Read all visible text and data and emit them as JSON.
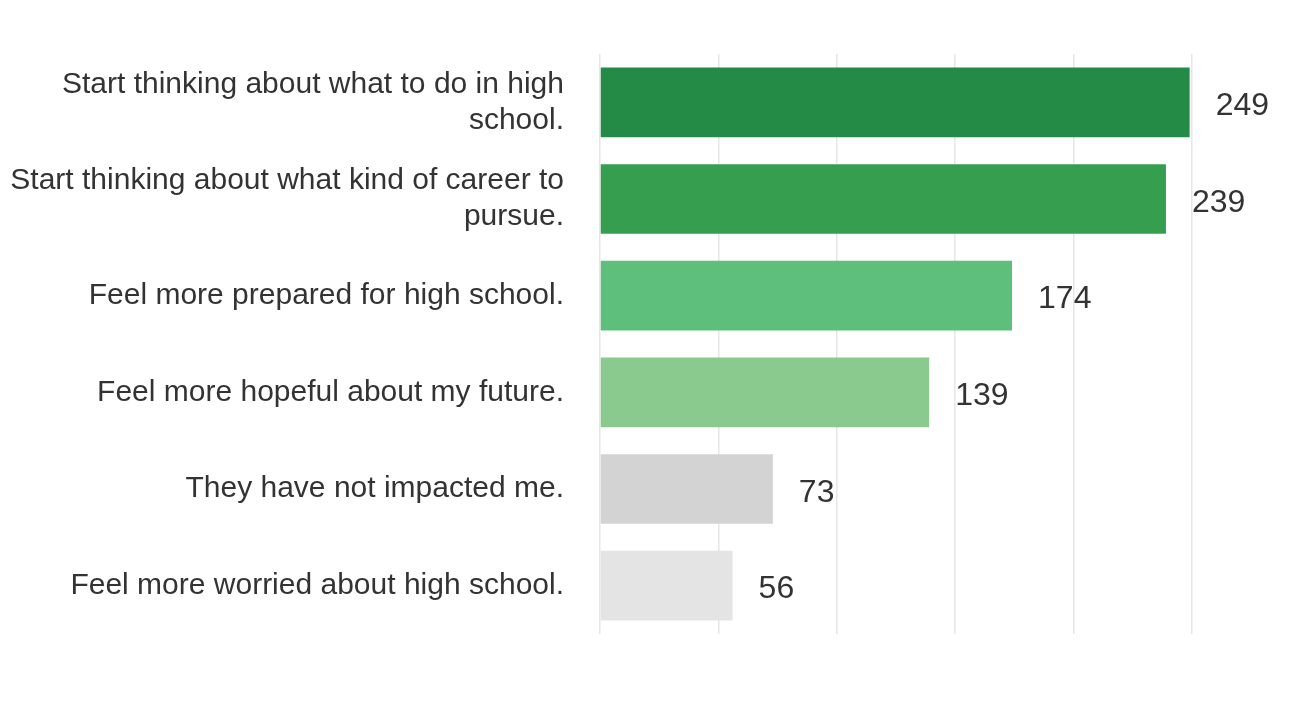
{
  "chart_data": {
    "type": "bar",
    "orientation": "horizontal",
    "categories": [
      "Start thinking about what to do in high school.",
      "Start thinking about what kind of career to pursue.",
      "Feel more prepared for high school.",
      "Feel more hopeful about my future.",
      "They have not impacted me.",
      "Feel more worried about high school."
    ],
    "values": [
      249,
      239,
      174,
      139,
      73,
      56
    ],
    "colors": [
      "#238b45",
      "#369e4f",
      "#5dbf7b",
      "#8aca8f",
      "#d3d3d3",
      "#e4e4e4"
    ],
    "xlim": [
      0,
      250
    ],
    "xticks": [
      {
        "value": 0,
        "label": null
      },
      {
        "value": 50,
        "label": null
      },
      {
        "value": 100,
        "label": null
      },
      {
        "value": 150,
        "label": null
      },
      {
        "value": 200,
        "label": null
      },
      {
        "value": 250,
        "label": null
      }
    ],
    "grid": "x",
    "data_labels": true,
    "legend": false
  }
}
